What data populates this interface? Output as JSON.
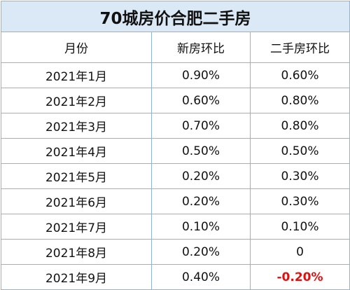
{
  "title": "70城房价合肥二手房",
  "columns": [
    "月份",
    "新房环比",
    "二手房环比"
  ],
  "rows": [
    {
      "month": "2021年1月",
      "new": "0.90%",
      "used": "0.60%"
    },
    {
      "month": "2021年2月",
      "new": "0.60%",
      "used": "0.80%"
    },
    {
      "month": "2021年3月",
      "new": "0.70%",
      "used": "0.80%"
    },
    {
      "month": "2021年4月",
      "new": "0.50%",
      "used": "0.50%"
    },
    {
      "month": "2021年5月",
      "new": "0.20%",
      "used": "0.30%"
    },
    {
      "month": "2021年6月",
      "new": "0.20%",
      "used": "0.30%"
    },
    {
      "month": "2021年7月",
      "new": "0.10%",
      "used": "0.10%"
    },
    {
      "month": "2021年8月",
      "new": "0.20%",
      "used": "0"
    },
    {
      "month": "2021年9月",
      "new": "0.40%",
      "used": "-0.20%"
    }
  ],
  "colors": {
    "title_bg": "#dbe8f6",
    "border": "#8eb4dc",
    "negative": "#e01010"
  }
}
